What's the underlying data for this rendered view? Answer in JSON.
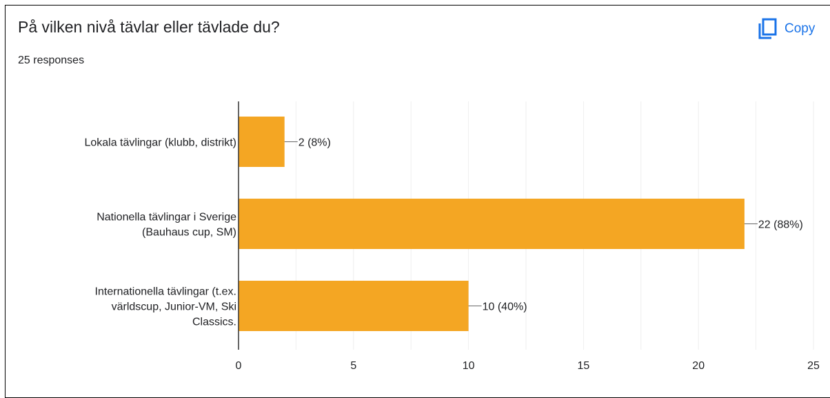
{
  "question": {
    "title": "På vilken nivå tävlar eller tävlade du?",
    "responses": "25 responses"
  },
  "toolbar": {
    "copy_label": "Copy",
    "copy_icon": "copy-icon",
    "accent_color": "#1a73e8"
  },
  "chart_data": {
    "type": "bar",
    "orientation": "horizontal",
    "categories": [
      [
        "Lokala tävlingar (klubb, distrikt)"
      ],
      [
        "Nationella tävlingar i Sverige",
        "(Bauhaus cup, SM)"
      ],
      [
        "Internationella tävlingar (t.ex.",
        "världscup, Junior-VM, Ski",
        "Classics."
      ]
    ],
    "values": [
      2,
      22,
      10
    ],
    "value_labels": [
      "2 (8%)",
      "22 (88%)",
      "10 (40%)"
    ],
    "xlim": [
      0,
      25
    ],
    "xticks": [
      0,
      5,
      10,
      15,
      20,
      25
    ],
    "grid": true,
    "bar_color": "#f4a623",
    "title": "",
    "xlabel": "",
    "ylabel": ""
  }
}
